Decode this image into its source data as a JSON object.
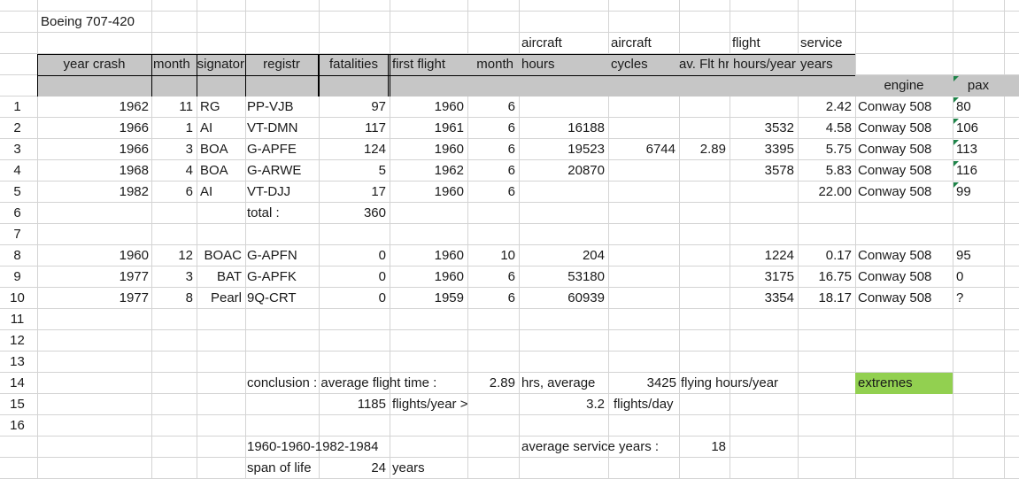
{
  "sheet": {
    "title": "Boeing 707-420",
    "header_top": {
      "aircraft_1": "aircraft",
      "aircraft_2": "aircraft",
      "flight": "flight",
      "service": "service"
    },
    "header": {
      "year_crash": "year crash",
      "month": "month",
      "designator": "designator",
      "registr": "registr",
      "fatalities": "fatalities",
      "first_flight": "first flight",
      "month2": "month",
      "hours": "hours",
      "cycles": "cycles",
      "av_flt": "av. Flt hrs",
      "hours_year": "hours/year",
      "years": "years"
    },
    "header3": {
      "engine": "engine",
      "pax": "pax"
    },
    "row_numbers": [
      "1",
      "2",
      "3",
      "4",
      "5",
      "6",
      "7",
      "8",
      "9",
      "10",
      "11",
      "12",
      "13",
      "14",
      "15",
      "16"
    ],
    "rows": [
      {
        "year": "1962",
        "month": "11",
        "designator": "RG",
        "registr": "PP-VJB",
        "fatalities": "97",
        "first_flight": "1960",
        "ff_month": "6",
        "hours": "",
        "cycles": "",
        "avflt": "",
        "hpy": "",
        "years": "2.42",
        "engine": "Conway 508",
        "pax": "80"
      },
      {
        "year": "1966",
        "month": "1",
        "designator": "AI",
        "registr": "VT-DMN",
        "fatalities": "117",
        "first_flight": "1961",
        "ff_month": "6",
        "hours": "16188",
        "cycles": "",
        "avflt": "",
        "hpy": "3532",
        "years": "4.58",
        "engine": "Conway 508",
        "pax": "106"
      },
      {
        "year": "1966",
        "month": "3",
        "designator": "BOA",
        "registr": "G-APFE",
        "fatalities": "124",
        "first_flight": "1960",
        "ff_month": "6",
        "hours": "19523",
        "cycles": "6744",
        "avflt": "2.89",
        "hpy": "3395",
        "years": "5.75",
        "engine": "Conway 508",
        "pax": "113"
      },
      {
        "year": "1968",
        "month": "4",
        "designator": "BOA",
        "registr": "G-ARWE",
        "fatalities": "5",
        "first_flight": "1962",
        "ff_month": "6",
        "hours": "20870",
        "cycles": "",
        "avflt": "",
        "hpy": "3578",
        "years": "5.83",
        "engine": "Conway 508",
        "pax": "116"
      },
      {
        "year": "1982",
        "month": "6",
        "designator": "AI",
        "registr": "VT-DJJ",
        "fatalities": "17",
        "first_flight": "1960",
        "ff_month": "6",
        "hours": "",
        "cycles": "",
        "avflt": "",
        "hpy": "",
        "years": "22.00",
        "engine": "Conway 508",
        "pax": "99"
      }
    ],
    "total_label": "total :",
    "total_value": "360",
    "rows2": [
      {
        "year": "1960",
        "month": "12",
        "designator": "BOAC",
        "registr": "G-APFN",
        "fatalities": "0",
        "first_flight": "1960",
        "ff_month": "10",
        "hours": "204",
        "hpy": "1224",
        "years": "0.17",
        "engine": "Conway 508",
        "pax": "95"
      },
      {
        "year": "1977",
        "month": "3",
        "designator": "BAT",
        "registr": "G-APFK",
        "fatalities": "0",
        "first_flight": "1960",
        "ff_month": "6",
        "hours": "53180",
        "hpy": "3175",
        "years": "16.75",
        "engine": "Conway 508",
        "pax": "0"
      },
      {
        "year": "1977",
        "month": "8",
        "designator": "Pearl",
        "registr": "9Q-CRT",
        "fatalities": "0",
        "first_flight": "1959",
        "ff_month": "6",
        "hours": "60939",
        "hpy": "3354",
        "years": "18.17",
        "engine": "Conway 508",
        "pax": "?"
      }
    ],
    "conclusion": {
      "label": "conclusion : average flight time :",
      "avg_time": "2.89",
      "hrs_avg": "hrs, average",
      "fly_hours": "3425",
      "fly_hours_label": "flying hours/year",
      "extremes": "extremes",
      "flights_year": "1185",
      "flights_year_label": "flights/year >",
      "flights_day": "3.2",
      "flights_day_label": "flights/day",
      "years_range": "1960-1960-1982-1984",
      "avg_service_label": "average service years :",
      "avg_service": "18",
      "span_label": "span of life",
      "span_value": "24",
      "span_unit": "years"
    }
  },
  "colors": {
    "header_band": "#c6c6c6",
    "extremes_fill": "#92d050",
    "gridline": "#d4d4d4",
    "comment_marker": "#1e8449"
  }
}
